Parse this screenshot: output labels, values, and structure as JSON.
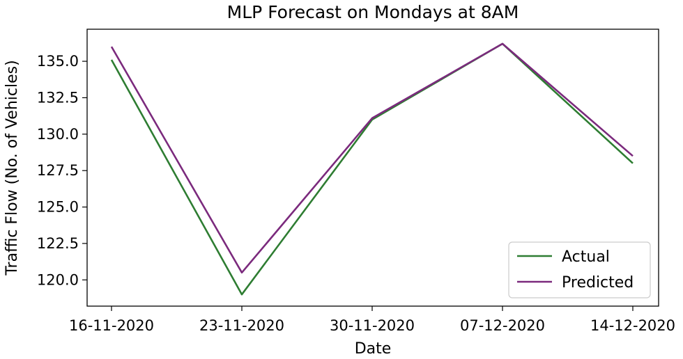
{
  "chart_data": {
    "type": "line",
    "title": "MLP Forecast on Mondays at 8AM",
    "xlabel": "Date",
    "ylabel": "Traffic Flow (No. of Vehicles)",
    "categories": [
      "16-11-2020",
      "23-11-2020",
      "30-11-2020",
      "07-12-2020",
      "14-12-2020"
    ],
    "series": [
      {
        "name": "Actual",
        "color": "#2e7d32",
        "values": [
          135.1,
          119.0,
          131.0,
          136.2,
          128.0
        ]
      },
      {
        "name": "Predicted",
        "color": "#7b2a7d",
        "values": [
          136.0,
          120.5,
          131.1,
          136.2,
          128.5
        ]
      }
    ],
    "ylim": [
      118.2,
      137.2
    ],
    "yticks": [
      120.0,
      122.5,
      125.0,
      127.5,
      130.0,
      132.5,
      135.0
    ],
    "ytick_labels": [
      "120.0",
      "122.5",
      "125.0",
      "127.5",
      "130.0",
      "132.5",
      "135.0"
    ],
    "grid": false,
    "legend_position": "lower right"
  }
}
